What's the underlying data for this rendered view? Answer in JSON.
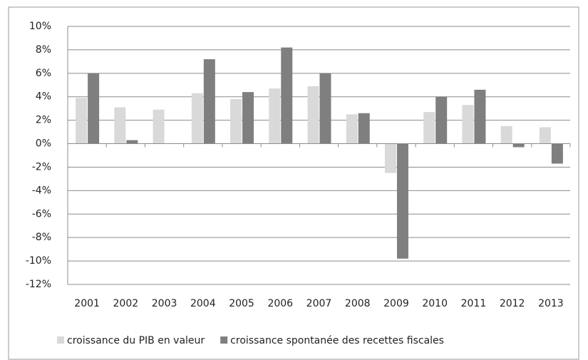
{
  "chart_data": {
    "type": "bar",
    "categories": [
      "2001",
      "2002",
      "2003",
      "2004",
      "2005",
      "2006",
      "2007",
      "2008",
      "2009",
      "2010",
      "2011",
      "2012",
      "2013"
    ],
    "series": [
      {
        "name": "croissance du PIB en valeur",
        "color": "#d9d9d9",
        "values": [
          3.9,
          3.1,
          2.9,
          4.3,
          3.8,
          4.7,
          4.9,
          2.5,
          -2.5,
          2.7,
          3.3,
          1.5,
          1.4
        ]
      },
      {
        "name": "croissance spontanée des recettes fiscales",
        "color": "#7f7f7f",
        "values": [
          6.0,
          0.3,
          0,
          7.2,
          4.4,
          8.2,
          6.0,
          2.6,
          -9.8,
          4.0,
          4.6,
          -0.3,
          -1.7
        ]
      }
    ],
    "ylim": [
      -12,
      10
    ],
    "yticks": [
      {
        "value": -12,
        "label": "-12%"
      },
      {
        "value": -10,
        "label": "-10%"
      },
      {
        "value": -8,
        "label": "-8%"
      },
      {
        "value": -6,
        "label": "-6%"
      },
      {
        "value": -4,
        "label": "-4%"
      },
      {
        "value": -2,
        "label": "-2%"
      },
      {
        "value": 0,
        "label": "0%"
      },
      {
        "value": 2,
        "label": "2%"
      },
      {
        "value": 4,
        "label": "4%"
      },
      {
        "value": 6,
        "label": "6%"
      },
      {
        "value": 8,
        "label": "8%"
      },
      {
        "value": 10,
        "label": "10%"
      }
    ],
    "grid": true,
    "legend": "bottom"
  }
}
